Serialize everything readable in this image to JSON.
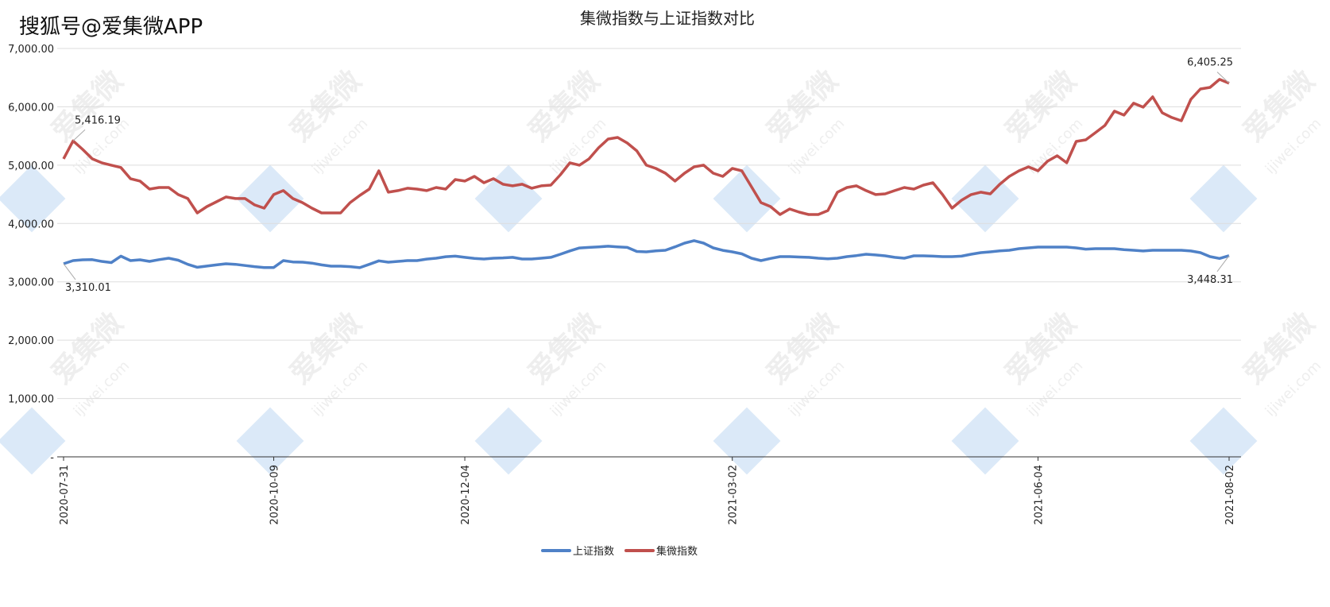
{
  "chart_data": {
    "type": "line",
    "title": "集微指数与上证指数对比",
    "watermark": "搜狐号@爱集微APP",
    "background_marks": [
      "爱集微",
      "ijiwei.com"
    ],
    "categories": [
      "2020-07-31",
      null,
      null,
      null,
      null,
      null,
      null,
      null,
      null,
      null,
      null,
      null,
      null,
      null,
      null,
      null,
      null,
      null,
      null,
      null,
      null,
      null,
      "2020-10-09",
      null,
      null,
      null,
      null,
      null,
      null,
      null,
      null,
      null,
      null,
      null,
      null,
      null,
      null,
      null,
      null,
      null,
      null,
      null,
      "2020-12-04",
      null,
      null,
      null,
      null,
      null,
      null,
      null,
      null,
      null,
      null,
      null,
      null,
      null,
      null,
      null,
      null,
      null,
      null,
      null,
      null,
      null,
      null,
      null,
      null,
      null,
      null,
      null,
      "2021-03-02",
      null,
      null,
      null,
      null,
      null,
      null,
      null,
      null,
      null,
      null,
      null,
      null,
      null,
      null,
      null,
      null,
      null,
      null,
      null,
      null,
      null,
      null,
      null,
      null,
      null,
      null,
      null,
      null,
      null,
      null,
      null,
      "2021-06-04",
      null,
      null,
      null,
      null,
      null,
      null,
      null,
      null,
      null,
      null,
      null,
      null,
      null,
      null,
      null,
      null,
      null,
      null,
      null,
      "2021-08-02"
    ],
    "series": [
      {
        "name": "上证指数",
        "color": "#4f81c7",
        "values": [
          3310.01,
          3364,
          3378,
          3380,
          3350,
          3330,
          3440,
          3364,
          3378,
          3350,
          3380,
          3405,
          3370,
          3300,
          3250,
          3270,
          3290,
          3310,
          3300,
          3280,
          3260,
          3245,
          3245,
          3364,
          3340,
          3337,
          3320,
          3290,
          3269,
          3269,
          3260,
          3242,
          3300,
          3360,
          3337,
          3350,
          3364,
          3364,
          3390,
          3405,
          3430,
          3440,
          3420,
          3400,
          3391,
          3405,
          3410,
          3419,
          3391,
          3391,
          3405,
          3420,
          3473,
          3530,
          3580,
          3590,
          3600,
          3610,
          3600,
          3590,
          3520,
          3514,
          3530,
          3541,
          3600,
          3664,
          3705,
          3664,
          3582,
          3540,
          3514,
          3480,
          3405,
          3364,
          3400,
          3432,
          3432,
          3425,
          3419,
          3405,
          3395,
          3405,
          3432,
          3450,
          3473,
          3460,
          3446,
          3420,
          3405,
          3446,
          3446,
          3440,
          3432,
          3432,
          3440,
          3473,
          3500,
          3514,
          3530,
          3541,
          3568,
          3582,
          3596,
          3596,
          3596,
          3596,
          3582,
          3560,
          3568,
          3568,
          3568,
          3550,
          3541,
          3528,
          3541,
          3541,
          3541,
          3541,
          3528,
          3500,
          3432,
          3400,
          3448.31
        ],
        "value_labels": [
          "3,310.01",
          null,
          null,
          null,
          null,
          null,
          null,
          null,
          null,
          null,
          null,
          null,
          null,
          null,
          null,
          null,
          null,
          null,
          null,
          null,
          null,
          null,
          null,
          null,
          null,
          null,
          null,
          null,
          null,
          null,
          null,
          null,
          null,
          null,
          null,
          null,
          null,
          null,
          null,
          null,
          null,
          null,
          null,
          null,
          null,
          null,
          null,
          null,
          null,
          null,
          null,
          null,
          null,
          null,
          null,
          null,
          null,
          null,
          null,
          null,
          null,
          null,
          null,
          null,
          null,
          null,
          null,
          null,
          null,
          null,
          null,
          null,
          null,
          null,
          null,
          null,
          null,
          null,
          null,
          null,
          null,
          null,
          null,
          null,
          null,
          null,
          null,
          null,
          null,
          null,
          null,
          null,
          null,
          null,
          null,
          null,
          null,
          null,
          null,
          null,
          null,
          null,
          null,
          null,
          null,
          null,
          null,
          null,
          null,
          null,
          null,
          null,
          null,
          null,
          null,
          null,
          null,
          null,
          null,
          null,
          null,
          null,
          "3,448.31"
        ]
      },
      {
        "name": "集微指数",
        "color": "#c0504d",
        "values": [
          5108,
          5416.19,
          5271,
          5108,
          5040,
          4999,
          4960,
          4768,
          4727,
          4590,
          4617,
          4617,
          4495,
          4427,
          4181,
          4290,
          4372,
          4454,
          4427,
          4427,
          4318,
          4263,
          4495,
          4563,
          4427,
          4358,
          4263,
          4181,
          4181,
          4181,
          4358,
          4481,
          4590,
          4903,
          4536,
          4563,
          4604,
          4590,
          4563,
          4617,
          4590,
          4753,
          4727,
          4808,
          4699,
          4768,
          4672,
          4645,
          4672,
          4604,
          4645,
          4658,
          4835,
          5040,
          4999,
          5108,
          5298,
          5448,
          5475,
          5380,
          5244,
          4999,
          4944,
          4862,
          4727,
          4862,
          4971,
          4999,
          4862,
          4808,
          4944,
          4903,
          4631,
          4358,
          4290,
          4154,
          4249,
          4195,
          4154,
          4154,
          4222,
          4536,
          4617,
          4645,
          4563,
          4495,
          4508,
          4563,
          4617,
          4590,
          4658,
          4699,
          4495,
          4263,
          4399,
          4495,
          4536,
          4508,
          4672,
          4808,
          4903,
          4971,
          4903,
          5067,
          5162,
          5040,
          5407,
          5434,
          5557,
          5680,
          5925,
          5857,
          6061,
          5993,
          6170,
          5898,
          5816,
          5761,
          6129,
          6306,
          6333,
          6470,
          6405.25
        ],
        "value_labels": [
          null,
          "5,416.19",
          null,
          null,
          null,
          null,
          null,
          null,
          null,
          null,
          null,
          null,
          null,
          null,
          null,
          null,
          null,
          null,
          null,
          null,
          null,
          null,
          null,
          null,
          null,
          null,
          null,
          null,
          null,
          null,
          null,
          null,
          null,
          null,
          null,
          null,
          null,
          null,
          null,
          null,
          null,
          null,
          null,
          null,
          null,
          null,
          null,
          null,
          null,
          null,
          null,
          null,
          null,
          null,
          null,
          null,
          null,
          null,
          null,
          null,
          null,
          null,
          null,
          null,
          null,
          null,
          null,
          null,
          null,
          null,
          null,
          null,
          null,
          null,
          null,
          null,
          null,
          null,
          null,
          null,
          null,
          null,
          null,
          null,
          null,
          null,
          null,
          null,
          null,
          null,
          null,
          null,
          null,
          null,
          null,
          null,
          null,
          null,
          null,
          null,
          null,
          null,
          null,
          null,
          null,
          null,
          null,
          null,
          null,
          null,
          null,
          null,
          null,
          null,
          null,
          null,
          null,
          null,
          null,
          null,
          null,
          null,
          "6,405.25"
        ]
      }
    ],
    "ylim": [
      0,
      7000
    ],
    "yticks": [
      {
        "value": 0,
        "label": "-"
      },
      {
        "value": 1000,
        "label": "1,000.00"
      },
      {
        "value": 2000,
        "label": "2,000.00"
      },
      {
        "value": 3000,
        "label": "3,000.00"
      },
      {
        "value": 4000,
        "label": "4,000.00"
      },
      {
        "value": 5000,
        "label": "5,000.00"
      },
      {
        "value": 6000,
        "label": "6,000.00"
      },
      {
        "value": 7000,
        "label": "7,000.00"
      }
    ],
    "grid": true,
    "legend": "bottom"
  }
}
